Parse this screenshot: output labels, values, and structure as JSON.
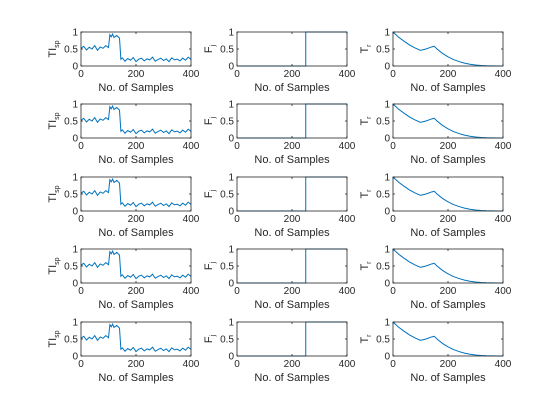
{
  "chart_data": {
    "type": "line",
    "layout": {
      "rows": 5,
      "cols": 3
    },
    "columns": [
      {
        "ylabel": "TI",
        "ylabel_sub": "sp",
        "xlabel": "No. of Samples",
        "xlim": [
          0,
          400
        ],
        "ylim": [
          0,
          1
        ],
        "xticks": [
          "0",
          "200",
          "400"
        ],
        "yticks": [
          "0",
          "0.5",
          "1"
        ],
        "series": [
          {
            "color": "#0072BD",
            "x": [
              0,
              10,
              20,
              30,
              40,
              50,
              60,
              70,
              80,
              90,
              100,
              105,
              110,
              115,
              120,
              130,
              140,
              145,
              150,
              160,
              170,
              180,
              190,
              200,
              210,
              220,
              230,
              240,
              250,
              260,
              270,
              280,
              290,
              300,
              310,
              320,
              330,
              340,
              350,
              360,
              370,
              380,
              390,
              400
            ],
            "y": [
              0.52,
              0.58,
              0.47,
              0.55,
              0.5,
              0.6,
              0.46,
              0.56,
              0.52,
              0.6,
              0.54,
              0.92,
              0.86,
              0.94,
              0.84,
              0.9,
              0.82,
              0.2,
              0.24,
              0.14,
              0.22,
              0.17,
              0.25,
              0.13,
              0.2,
              0.23,
              0.15,
              0.21,
              0.18,
              0.26,
              0.14,
              0.19,
              0.23,
              0.16,
              0.21,
              0.13,
              0.24,
              0.18,
              0.2,
              0.15,
              0.23,
              0.17,
              0.26,
              0.19
            ]
          }
        ]
      },
      {
        "ylabel": "F",
        "ylabel_sub": "j",
        "xlabel": "No. of Samples",
        "xlim": [
          0,
          400
        ],
        "ylim": [
          0,
          1
        ],
        "xticks": [
          "0",
          "200",
          "400"
        ],
        "yticks": [
          "0",
          "0.5",
          "1"
        ],
        "series": [
          {
            "color": "#0072BD",
            "x": [
              0,
              250,
              250,
              400
            ],
            "y": [
              0,
              0,
              1,
              1
            ]
          }
        ]
      },
      {
        "ylabel": "T",
        "ylabel_sub": "r",
        "xlabel": "No. of Samples",
        "xlim": [
          0,
          400
        ],
        "ylim": [
          0,
          1
        ],
        "xticks": [
          "0",
          "200",
          "400"
        ],
        "yticks": [
          "0",
          "0.5",
          "1"
        ],
        "series": [
          {
            "color": "#0072BD",
            "x": [
              0,
              20,
              40,
              60,
              80,
              100,
              120,
              140,
              150,
              160,
              180,
              200,
              220,
              240,
              260,
              280,
              300,
              320,
              340,
              360,
              380,
              400
            ],
            "y": [
              1.0,
              0.85,
              0.73,
              0.62,
              0.53,
              0.46,
              0.5,
              0.56,
              0.58,
              0.5,
              0.37,
              0.27,
              0.19,
              0.13,
              0.085,
              0.05,
              0.03,
              0.015,
              0.007,
              0.003,
              0.001,
              0.0
            ]
          }
        ]
      }
    ]
  }
}
